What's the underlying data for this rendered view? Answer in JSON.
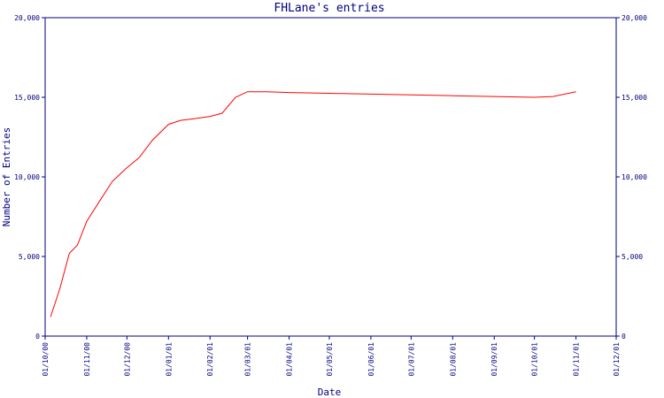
{
  "chart_data": {
    "type": "line",
    "title": "FHLane's entries",
    "xlabel": "Date",
    "ylabel": "Number of Entries",
    "x_tick_labels": [
      "01/10/00",
      "01/11/00",
      "01/12/00",
      "01/01/01",
      "01/02/01",
      "01/03/01",
      "01/04/01",
      "01/05/01",
      "01/06/01",
      "01/07/01",
      "01/08/01",
      "01/09/01",
      "01/10/01",
      "01/11/01",
      "01/12/01"
    ],
    "y_tick_labels": [
      "0",
      "5,000",
      "10,000",
      "15,000",
      "20,000"
    ],
    "ylim": [
      0,
      20000
    ],
    "xlim": [
      "2000-10-01",
      "2001-12-01"
    ],
    "grid": false,
    "colors": {
      "axis": "#000080",
      "line": "#ff0000"
    },
    "series": [
      {
        "x": [
          "2000-10-05",
          "2000-10-12",
          "2000-10-19",
          "2000-10-25",
          "2000-11-01",
          "2000-11-10",
          "2000-11-20",
          "2000-11-30",
          "2000-12-10",
          "2000-12-20",
          "2001-01-01",
          "2001-01-10",
          "2001-01-20",
          "2001-02-01",
          "2001-02-10",
          "2001-02-20",
          "2001-03-01",
          "2001-03-15",
          "2001-04-01",
          "2001-05-01",
          "2001-06-01",
          "2001-07-01",
          "2001-08-01",
          "2001-09-01",
          "2001-10-01",
          "2001-10-15",
          "2001-11-01"
        ],
        "values": [
          1200,
          3000,
          5200,
          5700,
          7200,
          8400,
          9700,
          10500,
          11200,
          12300,
          13300,
          13550,
          13650,
          13800,
          14000,
          15000,
          15350,
          15350,
          15300,
          15250,
          15200,
          15150,
          15100,
          15050,
          15000,
          15050,
          15350
        ]
      }
    ]
  }
}
